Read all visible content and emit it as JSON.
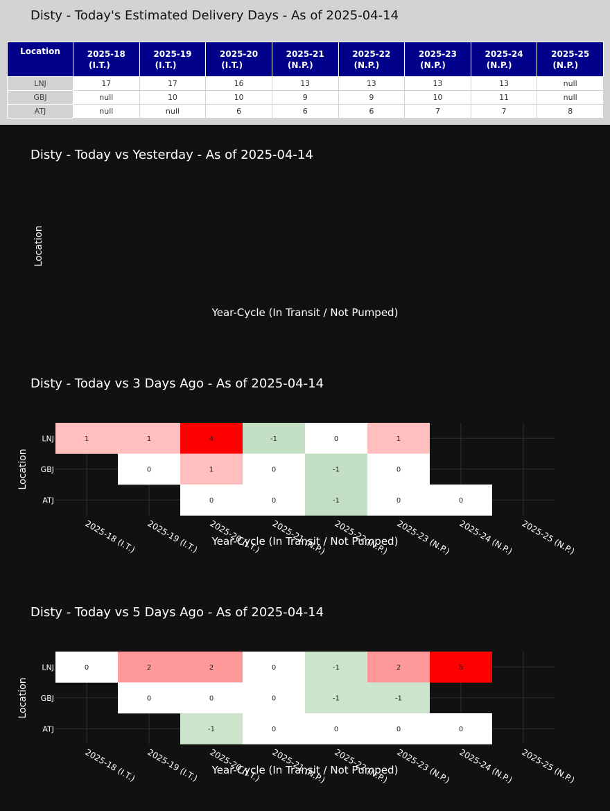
{
  "estimate_table": {
    "title": "Disty - Today's Estimated Delivery Days - As of 2025-04-14",
    "location_header": "Location",
    "columns": [
      {
        "cycle": "2025-18",
        "status": "(I.T.)"
      },
      {
        "cycle": "2025-19",
        "status": "(I.T.)"
      },
      {
        "cycle": "2025-20",
        "status": "(I.T.)"
      },
      {
        "cycle": "2025-21",
        "status": "(N.P.)"
      },
      {
        "cycle": "2025-22",
        "status": "(N.P.)"
      },
      {
        "cycle": "2025-23",
        "status": "(N.P.)"
      },
      {
        "cycle": "2025-24",
        "status": "(N.P.)"
      },
      {
        "cycle": "2025-25",
        "status": "(N.P.)"
      }
    ],
    "rows": [
      {
        "location": "LNJ",
        "values": [
          "17",
          "17",
          "16",
          "13",
          "13",
          "13",
          "13",
          "null"
        ]
      },
      {
        "location": "GBJ",
        "values": [
          "null",
          "10",
          "10",
          "9",
          "9",
          "10",
          "11",
          "null"
        ]
      },
      {
        "location": "ATJ",
        "values": [
          "null",
          "null",
          "6",
          "6",
          "6",
          "7",
          "7",
          "8"
        ]
      }
    ]
  },
  "chart_data": [
    {
      "type": "heatmap",
      "title": "Disty - Today vs Yesterday - As of 2025-04-14",
      "xlabel": "Year-Cycle (In Transit / Not Pumped)",
      "ylabel": "Location",
      "categories": [],
      "rows": [],
      "values": []
    },
    {
      "type": "heatmap",
      "title": "Disty - Today vs 3 Days Ago - As of 2025-04-14",
      "xlabel": "Year-Cycle (In Transit / Not Pumped)",
      "ylabel": "Location",
      "categories": [
        "2025-18 (I.T.)",
        "2025-19 (I.T.)",
        "2025-20 (I.T.)",
        "2025-21 (N.P.)",
        "2025-22 (N.P.)",
        "2025-23 (N.P.)",
        "2025-24 (N.P.)",
        "2025-25 (N.P.)"
      ],
      "rows": [
        "LNJ",
        "GBJ",
        "ATJ"
      ],
      "values": [
        [
          1,
          1,
          4,
          -1,
          0,
          1,
          null,
          null
        ],
        [
          null,
          0,
          1,
          0,
          -1,
          0,
          null,
          null
        ],
        [
          null,
          null,
          0,
          0,
          -1,
          0,
          0,
          null
        ]
      ],
      "colors": {
        "pos_max": "#ff0000",
        "pos_low": "#ffbfbf",
        "neg": "#c4e0c4",
        "zero": "#ffffff",
        "grid": "#2a2f3a"
      }
    },
    {
      "type": "heatmap",
      "title": "Disty - Today vs 5 Days Ago - As of 2025-04-14",
      "xlabel": "Year-Cycle (In Transit / Not Pumped)",
      "ylabel": "Location",
      "categories": [
        "2025-18 (I.T.)",
        "2025-19 (I.T.)",
        "2025-20 (I.T.)",
        "2025-21 (N.P.)",
        "2025-22 (N.P.)",
        "2025-23 (N.P.)",
        "2025-24 (N.P.)",
        "2025-25 (N.P.)"
      ],
      "rows": [
        "LNJ",
        "GBJ",
        "ATJ"
      ],
      "values": [
        [
          0,
          2,
          2,
          0,
          -1,
          2,
          5,
          null
        ],
        [
          null,
          0,
          0,
          0,
          -1,
          -1,
          null,
          null
        ],
        [
          null,
          null,
          -1,
          0,
          0,
          0,
          0,
          null
        ]
      ],
      "colors": {
        "pos_max": "#ff0000",
        "pos_low": "#ff9999",
        "neg": "#cce5cc",
        "zero": "#ffffff",
        "grid": "#2a2f3a"
      }
    }
  ]
}
